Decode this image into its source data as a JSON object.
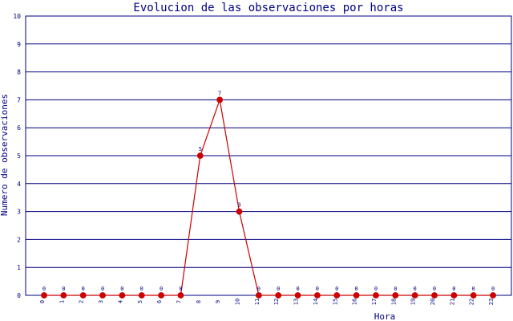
{
  "chart_data": {
    "type": "line",
    "title": "Evolucion de las observaciones por horas",
    "xlabel": "Hora",
    "ylabel": "Numero de observaciones",
    "categories": [
      "0",
      "1",
      "2",
      "3",
      "4",
      "5",
      "6",
      "7",
      "8",
      "9",
      "10",
      "11",
      "12",
      "13",
      "14",
      "15",
      "16",
      "17",
      "18",
      "19",
      "20",
      "21",
      "22",
      "23"
    ],
    "series": [
      {
        "values": [
          0,
          0,
          0,
          0,
          0,
          0,
          0,
          0,
          5,
          7,
          3,
          0,
          0,
          0,
          0,
          0,
          0,
          0,
          0,
          0,
          0,
          0,
          0,
          0
        ]
      }
    ],
    "ylim": [
      0,
      10
    ],
    "yticks": [
      "0",
      "1",
      "2",
      "3",
      "4",
      "5",
      "6",
      "7",
      "8",
      "9",
      "10"
    ],
    "grid": true,
    "colors": {
      "line": "#cc0000",
      "marker": "#cc0000",
      "grid": "#000080",
      "text": "#000080",
      "axis": "#000080"
    }
  }
}
